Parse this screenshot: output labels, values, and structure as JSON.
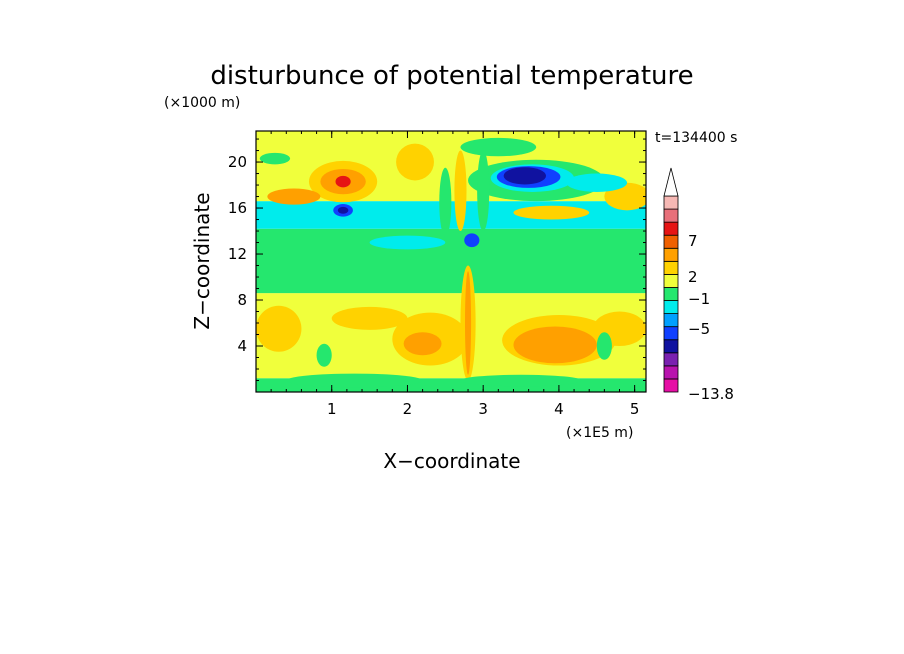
{
  "chart_data": {
    "type": "heatmap",
    "title": "disturbunce of potential temperature",
    "time_label": "t=134400 s",
    "xlabel": "X−coordinate",
    "ylabel": "Z−coordinate",
    "x_unit": "(×1E5 m)",
    "y_unit": "(×1000 m)",
    "xlim": [
      0,
      5.15
    ],
    "ylim": [
      0,
      22.7
    ],
    "x_ticks": [
      "1",
      "2",
      "3",
      "4",
      "5"
    ],
    "y_ticks": [
      "4",
      "8",
      "12",
      "16",
      "20"
    ],
    "colorbar": {
      "levels_bottom_to_top": [
        "#e60fa5",
        "#b813ae",
        "#7a21b0",
        "#1012a0",
        "#1040ff",
        "#00a0ff",
        "#00ecec",
        "#25e76e",
        "#f0ff3c",
        "#ffd200",
        "#ffa000",
        "#f06000",
        "#e61414",
        "#e8707a",
        "#f6b8b4"
      ],
      "labels": [
        "7",
        "2",
        "−1",
        "−5",
        "−13.8"
      ]
    },
    "colors": {
      "yellow": "#f0ff3c",
      "light_orange": "#ffd200",
      "orange": "#ffa000",
      "red": "#e61414",
      "green": "#25e76e",
      "cyan": "#00ecec",
      "blue": "#1040ff",
      "dark_blue": "#1012a0"
    }
  }
}
